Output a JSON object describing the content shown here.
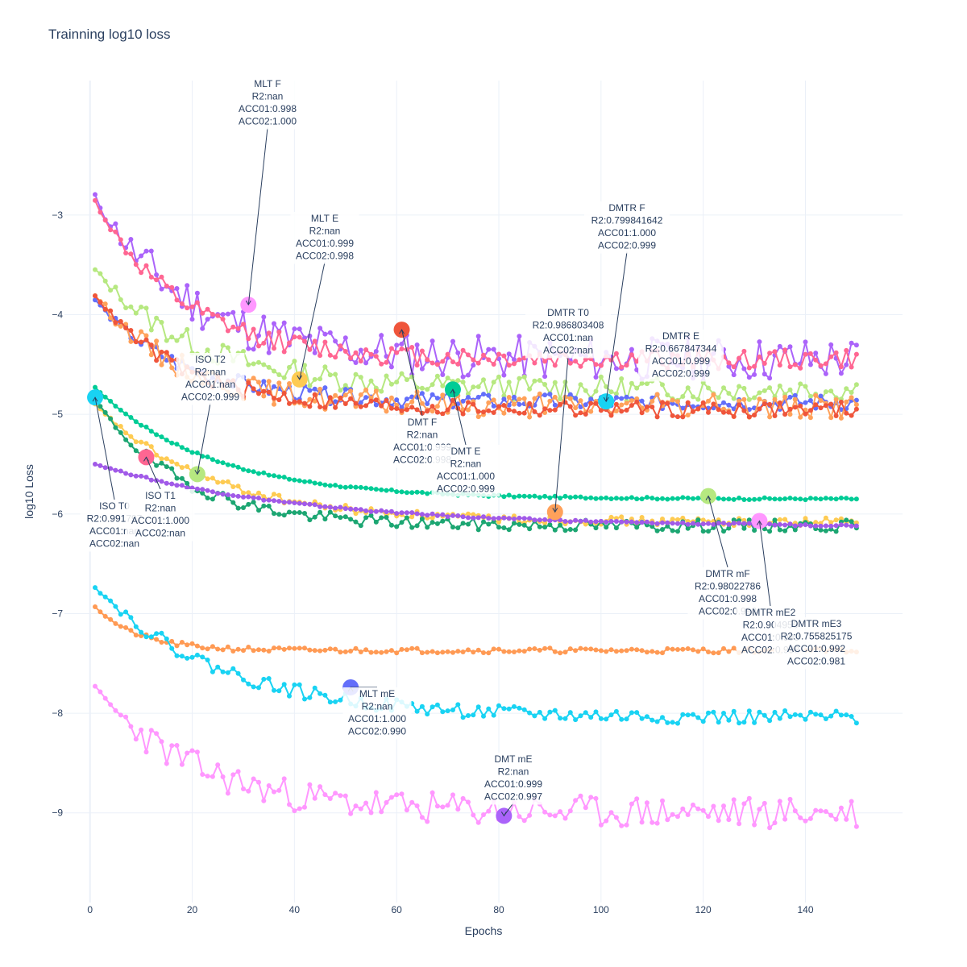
{
  "chart_data": {
    "type": "line",
    "title": "Trainning log10 loss",
    "xlabel": "Epochs",
    "ylabel": "log10 Loss",
    "xlim": [
      -5,
      159
    ],
    "ylim": [
      -9.9,
      -1.65
    ],
    "x_ticks": [
      0,
      20,
      40,
      60,
      80,
      100,
      120,
      140
    ],
    "x_tick_labels": [
      "0",
      "20",
      "40",
      "60",
      "80",
      "100",
      "120",
      "140"
    ],
    "y_ticks": [
      -3,
      -4,
      -5,
      -6,
      -7,
      -8,
      -9
    ],
    "y_tick_labels": [
      "−3",
      "−4",
      "−5",
      "−6",
      "−7",
      "−8",
      "−9"
    ],
    "grid": true,
    "x_range": [
      1,
      150
    ],
    "series": [
      {
        "color": "#AB63FA",
        "start": -2.82,
        "end": -4.45,
        "rate": 0.055,
        "noise": 0.22,
        "seed": 11
      },
      {
        "color": "#FF6692",
        "start": -2.86,
        "end": -4.45,
        "rate": 0.06,
        "noise": 0.1,
        "seed": 12
      },
      {
        "color": "#B6E880",
        "start": -3.55,
        "end": -4.75,
        "rate": 0.05,
        "noise": 0.12,
        "seed": 13
      },
      {
        "color": "#636EFA",
        "start": -3.85,
        "end": -4.88,
        "rate": 0.06,
        "noise": 0.08,
        "seed": 14
      },
      {
        "color": "#FFA15A",
        "start": -3.8,
        "end": -4.92,
        "rate": 0.06,
        "noise": 0.12,
        "seed": 15
      },
      {
        "color": "#EF553B",
        "start": -3.8,
        "end": -4.95,
        "rate": 0.06,
        "noise": 0.08,
        "seed": 16
      },
      {
        "color": "#00CC96",
        "start": -4.73,
        "end": -5.85,
        "rate": 0.045,
        "noise": 0.01,
        "seed": 17
      },
      {
        "color": "#FECB52",
        "start": -4.9,
        "end": -6.08,
        "rate": 0.045,
        "noise": 0.04,
        "seed": 18
      },
      {
        "color": "#1CA672",
        "start": -4.85,
        "end": -6.12,
        "rate": 0.06,
        "noise": 0.06,
        "seed": 19
      },
      {
        "color": "#A15AE8",
        "start": -5.5,
        "end": -6.13,
        "rate": 0.025,
        "noise": 0.01,
        "seed": 20
      },
      {
        "color": "#FF9A54",
        "start": -6.93,
        "end": -7.37,
        "rate": 0.12,
        "noise": 0.025,
        "seed": 21
      },
      {
        "color": "#19D3F3",
        "start": -6.73,
        "end": -8.05,
        "rate": 0.04,
        "noise": 0.07,
        "seed": 22
      },
      {
        "color": "#FF97FF",
        "start": -7.75,
        "end": -9.0,
        "rate": 0.05,
        "noise": 0.16,
        "seed": 23
      }
    ],
    "markers": [
      {
        "name": "MLT F",
        "x": 31,
        "y": -3.9,
        "color": "#FF97FF"
      },
      {
        "name": "MLT E",
        "x": 41,
        "y": -4.65,
        "color": "#FECB52"
      },
      {
        "name": "DMT F",
        "x": 61,
        "y": -4.15,
        "color": "#EF553B"
      },
      {
        "name": "DMT E",
        "x": 71,
        "y": -4.75,
        "color": "#00CC96"
      },
      {
        "name": "ISO T0",
        "x": 1,
        "y": -4.83,
        "color": "#19D3F3"
      },
      {
        "name": "ISO T1",
        "x": 11,
        "y": -5.43,
        "color": "#FF6692"
      },
      {
        "name": "ISO T2",
        "x": 21,
        "y": -5.6,
        "color": "#B6E880"
      },
      {
        "name": "DMTR T0",
        "x": 91,
        "y": -5.98,
        "color": "#FFA15A"
      },
      {
        "name": "DMTR F",
        "x": 101,
        "y": -4.87,
        "color": "#19D3F3"
      },
      {
        "name": "DMTR mF",
        "x": 121,
        "y": -5.82,
        "color": "#B6E880"
      },
      {
        "name": "DMTR mE2",
        "x": 131,
        "y": -6.07,
        "color": "#FF97FF"
      },
      {
        "name": "MLT mE",
        "x": 51,
        "y": -7.74,
        "color": "#636EFA"
      },
      {
        "name": "DMT mE",
        "x": 81,
        "y": -9.03,
        "color": "#AB63FA"
      }
    ],
    "annotations": [
      {
        "id": "mlt-f",
        "lines": [
          "MLT F",
          "R2:nan",
          "ACC01:0.998",
          "ACC02:1.000"
        ],
        "x": 31,
        "y": -3.9
      },
      {
        "id": "mlt-e",
        "lines": [
          "MLT E",
          "R2:nan",
          "ACC01:0.999",
          "ACC02:0.998"
        ],
        "x": 41,
        "y": -4.65
      },
      {
        "id": "dmtr-f",
        "lines": [
          "DMTR F",
          "R2:0.799841642",
          "ACC01:1.000",
          "ACC02:0.999"
        ],
        "x": 101,
        "y": -4.87
      },
      {
        "id": "dmtr-t0",
        "lines": [
          "DMTR T0",
          "R2:0.986803408",
          "ACC01:nan",
          "ACC02:nan"
        ],
        "x": 91,
        "y": -5.98
      },
      {
        "id": "dmtr-e",
        "lines": [
          "DMTR E",
          "R2:0.667847344",
          "ACC01:0.999",
          "ACC02:0.999"
        ],
        "x": 101,
        "y": -4.87
      },
      {
        "id": "iso-t2",
        "lines": [
          "ISO T2",
          "R2:nan",
          "ACC01:nan",
          "ACC02:0.999"
        ],
        "x": 21,
        "y": -5.6
      },
      {
        "id": "dmt-f",
        "lines": [
          "DMT F",
          "R2:nan",
          "ACC01:0.999",
          "ACC02:0.998"
        ],
        "x": 61,
        "y": -4.15
      },
      {
        "id": "dmt-e",
        "lines": [
          "DMT E",
          "R2:nan",
          "ACC01:1.000",
          "ACC02:0.999"
        ],
        "x": 71,
        "y": -4.75
      },
      {
        "id": "iso-t0",
        "lines": [
          "ISO T0",
          "R2:0.991797",
          "ACC01:nan",
          "ACC02:nan"
        ],
        "x": 1,
        "y": -4.83
      },
      {
        "id": "iso-t1",
        "lines": [
          "ISO T1",
          "R2:nan",
          "ACC01:1.000",
          "ACC02:nan"
        ],
        "x": 11,
        "y": -5.43
      },
      {
        "id": "dmtr-mf",
        "lines": [
          "DMTR mF",
          "R2:0.98022786",
          "ACC01:0.998",
          "ACC02:0.998"
        ],
        "x": 121,
        "y": -5.82
      },
      {
        "id": "dmtr-me2",
        "lines": [
          "DMTR mE2",
          "R2:0.904956",
          "ACC01:0.999",
          "ACC02:0.998"
        ],
        "x": 131,
        "y": -6.07
      },
      {
        "id": "dmtr-me3",
        "lines": [
          "DMTR mE3",
          "R2:0.755825175",
          "ACC01:0.992",
          "ACC02:0.981"
        ],
        "x": 146,
        "y": -7.35
      },
      {
        "id": "mlt-me",
        "lines": [
          "MLT mE",
          "R2:nan",
          "ACC01:1.000",
          "ACC02:0.990"
        ],
        "x": 51,
        "y": -7.74
      },
      {
        "id": "dmt-me",
        "lines": [
          "DMT mE",
          "R2:nan",
          "ACC01:0.999",
          "ACC02:0.997"
        ],
        "x": 81,
        "y": -9.03
      }
    ]
  }
}
